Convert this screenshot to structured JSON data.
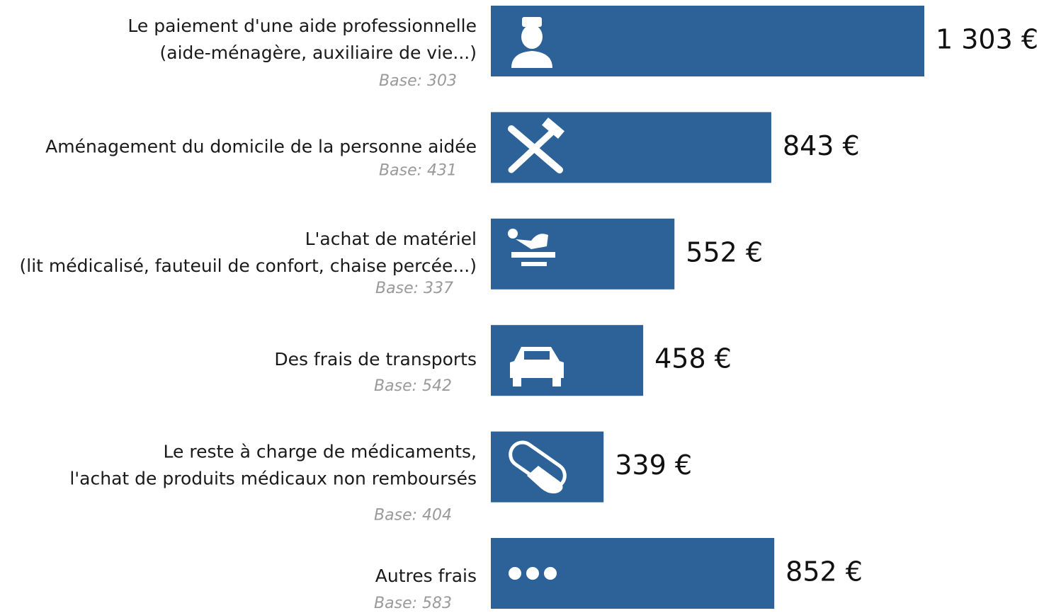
{
  "chart_data": {
    "type": "bar",
    "orientation": "horizontal",
    "color": "#2d6299",
    "categories": [
      [
        "Le paiement d'une aide professionnelle",
        "(aide-ménagère, auxiliaire de vie...)"
      ],
      [
        "Aménagement du domicile de la personne aidée"
      ],
      [
        "L'achat de matériel",
        "(lit médicalisé, fauteuil de confort, chaise percée...)"
      ],
      [
        "Des frais de transports"
      ],
      [
        "Le reste à charge de médicaments,",
        "l'achat de produits médicaux non remboursés"
      ],
      [
        "Autres frais"
      ]
    ],
    "bases": [
      "Base: 303",
      "Base: 431",
      "Base: 337",
      "Base: 542",
      "Base: 404",
      "Base: 583"
    ],
    "values": [
      1303,
      843,
      552,
      458,
      339,
      852
    ],
    "value_labels": [
      "1 303 €",
      "843 €",
      "552 €",
      "458 €",
      "339 €",
      "852 €"
    ]
  }
}
